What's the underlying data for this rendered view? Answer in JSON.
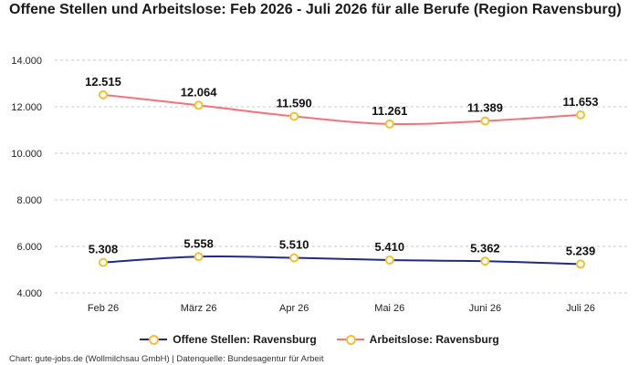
{
  "title": "Offene Stellen und Arbeitslose: Feb 2026 - Juli 2026 für alle Berufe (Region Ravensburg)",
  "source": "Chart: gute-jobs.de (Wollmilchsau GmbH) | Datenquelle: Bundesagentur für Arbeit",
  "colors": {
    "offene_stellen": "#1f2a8a",
    "arbeitslose": "#f4727a",
    "marker_outline": "#f2c12e",
    "grid": "#c8c8c8"
  },
  "chart_data": {
    "type": "line",
    "title": "Offene Stellen und Arbeitslose: Feb 2026 - Juli 2026 für alle Berufe (Region Ravensburg)",
    "categories": [
      "Feb 26",
      "März 26",
      "Apr 26",
      "Mai 26",
      "Juni 26",
      "Juli 26"
    ],
    "series": [
      {
        "name": "Offene Stellen: Ravensburg",
        "values": [
          5308,
          5558,
          5510,
          5410,
          5362,
          5239
        ],
        "labels": [
          "5.308",
          "5.558",
          "5.510",
          "5.410",
          "5.362",
          "5.239"
        ]
      },
      {
        "name": "Arbeitslose: Ravensburg",
        "values": [
          12515,
          12064,
          11590,
          11261,
          11389,
          11653
        ],
        "labels": [
          "12.515",
          "12.064",
          "11.590",
          "11.261",
          "11.389",
          "11.653"
        ]
      }
    ],
    "xlabel": "",
    "ylabel": "",
    "ylim": [
      4000,
      14000
    ],
    "yticks": [
      4000,
      6000,
      8000,
      10000,
      12000,
      14000
    ],
    "ytick_labels": [
      "4.000",
      "6.000",
      "8.000",
      "10.000",
      "12.000",
      "14.000"
    ],
    "grid": "horizontal dashed",
    "legend": "bottom-center"
  }
}
